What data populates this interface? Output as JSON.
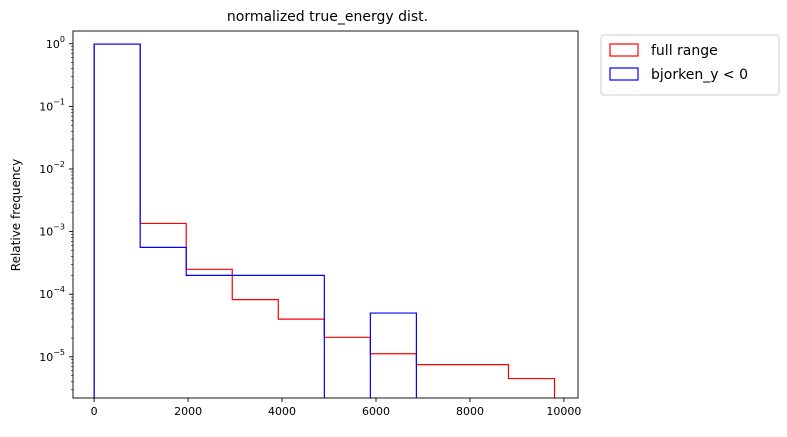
{
  "chart_data": {
    "type": "histogram",
    "title": "normalized true_energy dist.",
    "xlabel": "",
    "ylabel": "Relative frequency",
    "xlim": [
      -450,
      10300
    ],
    "ylim": [
      2.2e-06,
      1.6
    ],
    "yscale": "log",
    "grid": false,
    "legend_position": "outside-top-right",
    "x_ticks": [
      {
        "value": 0,
        "label": "0"
      },
      {
        "value": 2000,
        "label": "2000"
      },
      {
        "value": 4000,
        "label": "4000"
      },
      {
        "value": 6000,
        "label": "6000"
      },
      {
        "value": 8000,
        "label": "8000"
      },
      {
        "value": 10000,
        "label": "10000"
      }
    ],
    "y_ticks": [
      {
        "value": 1e-05,
        "base": "10",
        "exp": "−5"
      },
      {
        "value": 0.0001,
        "base": "10",
        "exp": "−4"
      },
      {
        "value": 0.001,
        "base": "10",
        "exp": "−3"
      },
      {
        "value": 0.01,
        "base": "10",
        "exp": "−2"
      },
      {
        "value": 0.1,
        "base": "10",
        "exp": "−1"
      },
      {
        "value": 1,
        "base": "10",
        "exp": "0"
      }
    ],
    "series": [
      {
        "name": "full range",
        "color": "#ff0000",
        "bin_edges": [
          0,
          980,
          1960,
          2940,
          3920,
          4900,
          5880,
          6860,
          7840,
          8820,
          9800
        ],
        "values": [
          0.99,
          0.00135,
          0.00025,
          8.2e-05,
          4e-05,
          2.05e-05,
          1.12e-05,
          7.5e-06,
          7.5e-06,
          4.5e-06
        ]
      },
      {
        "name": "bjorken_y < 0",
        "color": "#0000ff",
        "bin_edges": [
          0,
          980,
          1960,
          2940,
          3920,
          4900,
          5880,
          6860
        ],
        "values": [
          0.99,
          0.00056,
          0.0002,
          0.0002,
          0.0002,
          0,
          5e-05
        ]
      }
    ]
  }
}
